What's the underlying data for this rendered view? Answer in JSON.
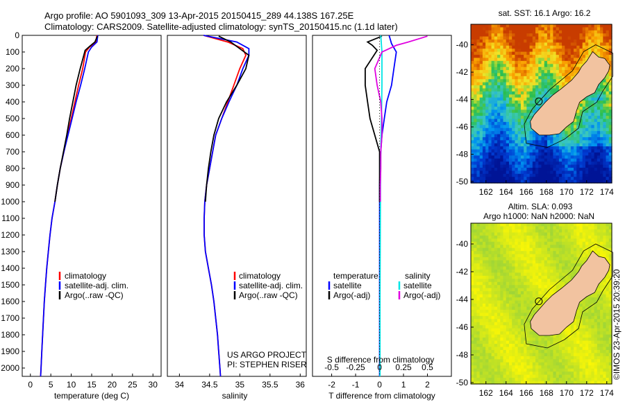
{
  "header": {
    "line1": "Argo profile: AO 5901093_309 13-Apr-2015 20150415_289 44.138S 167.25E",
    "line2": "Climatology: CARS2009. Satellite-adjusted climatology: synTS_20150415.nc (1.1d later)"
  },
  "colors": {
    "climatology": "#ff0000",
    "satellite_adj": "#0000ff",
    "argo": "#000000",
    "sal_satellite": "#00e5e5",
    "sal_argo": "#e000e0",
    "land": "#f2c3a0"
  },
  "depth_ticks": [
    0,
    100,
    200,
    300,
    400,
    500,
    600,
    700,
    800,
    900,
    1000,
    1100,
    1200,
    1300,
    1400,
    1500,
    1600,
    1700,
    1800,
    1900,
    2000
  ],
  "chart_data": [
    {
      "type": "line",
      "panel": "temperature",
      "xlabel": "temperature (deg C)",
      "xlim": [
        -2,
        32
      ],
      "ylim": [
        2050,
        0
      ],
      "xticks": [
        0,
        5,
        10,
        15,
        20,
        25,
        30
      ],
      "legend": [
        "climatology",
        "satellite-adj. clim.",
        "Argo(..raw -QC)"
      ],
      "series": [
        {
          "name": "climatology",
          "color": "#ff0000",
          "points": [
            [
              16.3,
              0
            ],
            [
              16.0,
              40
            ],
            [
              14.5,
              70
            ],
            [
              13.5,
              100
            ],
            [
              12.8,
              200
            ],
            [
              11.8,
              300
            ],
            [
              10.9,
              400
            ],
            [
              10.0,
              500
            ],
            [
              9.1,
              600
            ],
            [
              8.2,
              700
            ],
            [
              7.3,
              800
            ],
            [
              6.6,
              900
            ],
            [
              6.0,
              1000
            ],
            [
              5.3,
              1100
            ],
            [
              4.8,
              1200
            ],
            [
              4.4,
              1300
            ],
            [
              4.0,
              1400
            ],
            [
              3.7,
              1500
            ],
            [
              3.4,
              1600
            ],
            [
              3.2,
              1700
            ],
            [
              3.0,
              1800
            ],
            [
              2.8,
              1900
            ],
            [
              2.6,
              2000
            ],
            [
              2.5,
              2050
            ]
          ]
        },
        {
          "name": "satellite-adj. clim.",
          "color": "#0000ff",
          "points": [
            [
              16.5,
              0
            ],
            [
              16.3,
              40
            ],
            [
              15.0,
              70
            ],
            [
              14.2,
              100
            ],
            [
              13.3,
              200
            ],
            [
              12.3,
              300
            ],
            [
              11.2,
              400
            ],
            [
              10.2,
              500
            ],
            [
              9.2,
              600
            ],
            [
              8.2,
              700
            ],
            [
              7.3,
              800
            ],
            [
              6.6,
              900
            ],
            [
              6.0,
              1000
            ],
            [
              5.3,
              1100
            ],
            [
              4.8,
              1200
            ],
            [
              4.4,
              1300
            ],
            [
              4.0,
              1400
            ],
            [
              3.7,
              1500
            ],
            [
              3.4,
              1600
            ],
            [
              3.2,
              1700
            ],
            [
              3.0,
              1800
            ],
            [
              2.8,
              1900
            ],
            [
              2.6,
              2000
            ],
            [
              2.5,
              2050
            ]
          ]
        },
        {
          "name": "Argo(..raw -QC)",
          "color": "#000000",
          "points": [
            [
              16.4,
              5
            ],
            [
              15.8,
              40
            ],
            [
              14.8,
              60
            ],
            [
              13.4,
              90
            ],
            [
              12.2,
              200
            ],
            [
              11.2,
              300
            ],
            [
              10.4,
              400
            ],
            [
              9.6,
              500
            ],
            [
              8.9,
              600
            ],
            [
              8.1,
              700
            ],
            [
              7.3,
              800
            ],
            [
              6.6,
              900
            ],
            [
              6.0,
              1000
            ]
          ]
        }
      ]
    },
    {
      "type": "line",
      "panel": "salinity",
      "xlabel": "salinity",
      "xlim": [
        33.8,
        36.1
      ],
      "ylim": [
        2050,
        0
      ],
      "xticks": [
        34,
        34.5,
        35,
        35.5,
        36
      ],
      "legend": [
        "climatology",
        "satellite-adj. clim.",
        "Argo(..raw -QC)"
      ],
      "annotations": [
        "US ARGO PROJECT",
        "PI: STEPHEN RISER"
      ],
      "series": [
        {
          "name": "climatology",
          "color": "#ff0000",
          "points": [
            [
              34.4,
              0
            ],
            [
              34.8,
              40
            ],
            [
              35.05,
              80
            ],
            [
              35.1,
              120
            ],
            [
              35.0,
              200
            ],
            [
              34.9,
              300
            ],
            [
              34.8,
              400
            ],
            [
              34.7,
              500
            ],
            [
              34.6,
              600
            ],
            [
              34.55,
              700
            ],
            [
              34.5,
              800
            ],
            [
              34.45,
              900
            ],
            [
              34.42,
              1000
            ],
            [
              34.41,
              1100
            ],
            [
              34.41,
              1200
            ],
            [
              34.43,
              1300
            ],
            [
              34.48,
              1400
            ],
            [
              34.53,
              1500
            ],
            [
              34.57,
              1600
            ],
            [
              34.6,
              1700
            ],
            [
              34.63,
              1800
            ],
            [
              34.65,
              1900
            ],
            [
              34.67,
              2000
            ],
            [
              34.68,
              2050
            ]
          ]
        },
        {
          "name": "satellite-adj. clim.",
          "color": "#0000ff",
          "points": [
            [
              34.4,
              0
            ],
            [
              34.95,
              40
            ],
            [
              35.15,
              80
            ],
            [
              35.15,
              120
            ],
            [
              35.05,
              200
            ],
            [
              34.95,
              300
            ],
            [
              34.82,
              400
            ],
            [
              34.7,
              500
            ],
            [
              34.6,
              600
            ],
            [
              34.55,
              700
            ],
            [
              34.5,
              800
            ],
            [
              34.45,
              900
            ],
            [
              34.42,
              1000
            ],
            [
              34.41,
              1100
            ],
            [
              34.41,
              1200
            ],
            [
              34.43,
              1300
            ],
            [
              34.48,
              1400
            ],
            [
              34.53,
              1500
            ],
            [
              34.57,
              1600
            ],
            [
              34.6,
              1700
            ],
            [
              34.63,
              1800
            ],
            [
              34.65,
              1900
            ],
            [
              34.67,
              2000
            ],
            [
              34.68,
              2050
            ]
          ]
        },
        {
          "name": "Argo(..raw -QC)",
          "color": "#000000",
          "points": [
            [
              34.65,
              5
            ],
            [
              34.85,
              40
            ],
            [
              35.0,
              80
            ],
            [
              35.15,
              120
            ],
            [
              35.1,
              200
            ],
            [
              34.95,
              300
            ],
            [
              34.78,
              400
            ],
            [
              34.65,
              500
            ],
            [
              34.57,
              600
            ],
            [
              34.52,
              700
            ],
            [
              34.48,
              800
            ],
            [
              34.45,
              900
            ],
            [
              34.43,
              1000
            ]
          ]
        }
      ]
    },
    {
      "type": "line",
      "panel": "difference",
      "xlabel": "T difference from climatology",
      "xlabel_top": "S difference from climatology",
      "xlim": [
        -2.8,
        3.0
      ],
      "ylim": [
        2050,
        0
      ],
      "xticks": [
        -2,
        -1,
        0,
        1,
        2
      ],
      "xticks_top_labels": [
        "-0.5",
        "-0.25",
        "0",
        "0.25",
        "0.5"
      ],
      "legend": [
        "temperature",
        "satellite",
        "Argo(-adj)",
        "salinity",
        "satellite",
        "Argo(-adj)"
      ],
      "series": [
        {
          "name": "satellite",
          "color": "#0000ff",
          "points": [
            [
              0.4,
              0
            ],
            [
              0.5,
              50
            ],
            [
              0.7,
              100
            ],
            [
              0.6,
              200
            ],
            [
              0.5,
              300
            ],
            [
              0.3,
              400
            ],
            [
              0.2,
              500
            ],
            [
              0.1,
              600
            ],
            [
              0.05,
              700
            ],
            [
              0.02,
              800
            ],
            [
              0,
              900
            ],
            [
              0,
              1100
            ],
            [
              0,
              1500
            ],
            [
              0,
              2050
            ]
          ]
        },
        {
          "name": "Argo(-adj)",
          "color": "#000000",
          "points": [
            [
              0.1,
              5
            ],
            [
              -0.5,
              40
            ],
            [
              -0.3,
              60
            ],
            [
              -0.1,
              90
            ],
            [
              -0.6,
              200
            ],
            [
              -0.6,
              300
            ],
            [
              -0.5,
              400
            ],
            [
              -0.4,
              500
            ],
            [
              -0.2,
              600
            ],
            [
              0,
              700
            ],
            [
              0,
              800
            ],
            [
              0,
              900
            ],
            [
              0,
              1000
            ]
          ]
        },
        {
          "name": "salinity satellite",
          "color": "#00e5e5",
          "points": [
            [
              0.05,
              0
            ],
            [
              0.1,
              100
            ],
            [
              0.1,
              300
            ],
            [
              0.08,
              500
            ],
            [
              0.05,
              700
            ],
            [
              0.04,
              900
            ],
            [
              0.03,
              1200
            ],
            [
              0.02,
              1600
            ],
            [
              0.02,
              2050
            ]
          ]
        },
        {
          "name": "salinity Argo(-adj)",
          "color": "#e000e0",
          "points": [
            [
              2.0,
              5
            ],
            [
              1.2,
              40
            ],
            [
              0.7,
              60
            ],
            [
              0.1,
              100
            ],
            [
              -0.2,
              200
            ],
            [
              -0.1,
              300
            ],
            [
              0.05,
              400
            ],
            [
              0.1,
              500
            ],
            [
              0.1,
              600
            ],
            [
              0.05,
              700
            ],
            [
              0.05,
              800
            ],
            [
              0.03,
              900
            ],
            [
              0.03,
              1000
            ]
          ]
        }
      ]
    },
    {
      "type": "heatmap",
      "panel": "map-sst",
      "title": "sat. SST: 16.1 Argo: 16.2",
      "xlim": [
        160.5,
        174.5
      ],
      "ylim": [
        -50.1,
        -38.5
      ],
      "xticks": [
        162,
        164,
        166,
        168,
        170,
        172,
        174
      ],
      "yticks": [
        -40,
        -42,
        -44,
        -46,
        -48,
        -50
      ],
      "marker": {
        "lon": 167.25,
        "lat": -44.138
      }
    },
    {
      "type": "heatmap",
      "panel": "map-sla",
      "title_line1": "Altim. SLA: 0.093",
      "title_line2": "Argo h1000: NaN h2000: NaN",
      "xlim": [
        160.5,
        174.5
      ],
      "ylim": [
        -50.1,
        -38.5
      ],
      "xticks": [
        162,
        164,
        166,
        168,
        170,
        172,
        174
      ],
      "yticks": [
        -40,
        -42,
        -44,
        -46,
        -48,
        -50
      ],
      "marker": {
        "lon": 167.25,
        "lat": -44.138
      }
    }
  ],
  "credit": "©IMOS 23-Apr-2015 20:39:20"
}
